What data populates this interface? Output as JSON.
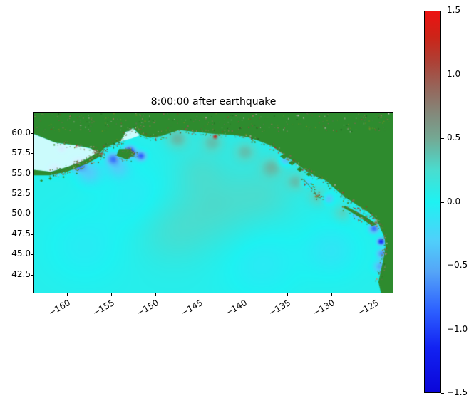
{
  "chart_data": {
    "type": "heatmap",
    "title": "8:00:00 after earthquake",
    "x_range": [
      -163.8,
      -123.0
    ],
    "y_range": [
      40.2,
      62.6
    ],
    "x_ticks": [
      -160,
      -155,
      -150,
      -145,
      -140,
      -135,
      -130,
      -125
    ],
    "x_tick_labels": [
      "−160",
      "−155",
      "−150",
      "−145",
      "−140",
      "−135",
      "−130",
      "−125"
    ],
    "y_ticks": [
      60.0,
      57.5,
      55.0,
      52.5,
      50.0,
      47.5,
      45.0,
      42.5
    ],
    "y_tick_labels": [
      "60.0",
      "57.5",
      "55.0",
      "52.5",
      "50.0",
      "47.5",
      "45.0",
      "42.5"
    ],
    "grid": false,
    "colorbar": {
      "vmin": -1.5,
      "vmax": 1.5,
      "position": "right",
      "ticks": [
        1.5,
        1.0,
        0.5,
        0.0,
        -0.5,
        -1.0,
        -1.5
      ],
      "tick_labels": [
        "1.5",
        "1.0",
        "0.5",
        "0.0",
        "−0.5",
        "−1.0",
        "−1.5"
      ],
      "colormap": [
        {
          "v": -1.5,
          "c": "#0b06d8"
        },
        {
          "v": -1.15,
          "c": "#1222f2"
        },
        {
          "v": -0.85,
          "c": "#2e62ff"
        },
        {
          "v": -0.55,
          "c": "#55a5f7"
        },
        {
          "v": -0.3,
          "c": "#4fd0fa"
        },
        {
          "v": 0.0,
          "c": "#1ef2f2"
        },
        {
          "v": 0.25,
          "c": "#49ddcf"
        },
        {
          "v": 0.5,
          "c": "#74a893"
        },
        {
          "v": 0.7,
          "c": "#84887a"
        },
        {
          "v": 0.9,
          "c": "#96655a"
        },
        {
          "v": 1.1,
          "c": "#ad4136"
        },
        {
          "v": 1.3,
          "c": "#cc2418"
        },
        {
          "v": 1.5,
          "c": "#ec1212"
        }
      ]
    },
    "sea_base": 0.05,
    "land_color": "#2e8b2e",
    "shallow_color": "#e9fdff",
    "land_texture_colors": [
      "#256d25",
      "#3c8a2c",
      "#6b8e23",
      "#7d6b4f",
      "#94785a",
      "#557a4a",
      "#9aa58c",
      "#7f5a3c",
      "#b22a1e",
      "#c8c8c8"
    ],
    "anomalies": [
      {
        "lon": -152.9,
        "lat": 57.7,
        "amp": -1.25,
        "sigma": 0.45
      },
      {
        "lon": -151.6,
        "lat": 57.15,
        "amp": -0.9,
        "sigma": 0.4
      },
      {
        "lon": -154.8,
        "lat": 56.8,
        "amp": -0.7,
        "sigma": 0.5
      },
      {
        "lon": -158.7,
        "lat": 56.1,
        "amp": -0.8,
        "sigma": 0.55
      },
      {
        "lon": -161.4,
        "lat": 55.5,
        "amp": -0.6,
        "sigma": 0.5
      },
      {
        "lon": -160.6,
        "lat": 58.1,
        "amp": -0.7,
        "sigma": 0.35
      },
      {
        "lon": -147.5,
        "lat": 59.3,
        "amp": 0.35,
        "sigma": 0.9
      },
      {
        "lon": -143.5,
        "lat": 58.9,
        "amp": 0.3,
        "sigma": 0.9
      },
      {
        "lon": -139.8,
        "lat": 57.7,
        "amp": 0.3,
        "sigma": 0.9
      },
      {
        "lon": -136.8,
        "lat": 55.8,
        "amp": 0.3,
        "sigma": 0.9
      },
      {
        "lon": -134.0,
        "lat": 54.0,
        "amp": 0.28,
        "sigma": 0.8
      },
      {
        "lon": -131.5,
        "lat": 52.1,
        "amp": 0.28,
        "sigma": 0.8
      },
      {
        "lon": -128.8,
        "lat": 50.1,
        "amp": 0.25,
        "sigma": 0.7
      },
      {
        "lon": -135.3,
        "lat": 56.6,
        "amp": -0.5,
        "sigma": 0.45
      },
      {
        "lon": -132.8,
        "lat": 53.9,
        "amp": -0.45,
        "sigma": 0.4
      },
      {
        "lon": -130.4,
        "lat": 51.9,
        "amp": -0.5,
        "sigma": 0.45
      },
      {
        "lon": -127.2,
        "lat": 49.9,
        "amp": -0.45,
        "sigma": 0.4
      },
      {
        "lon": -125.2,
        "lat": 48.2,
        "amp": -0.85,
        "sigma": 0.4
      },
      {
        "lon": -124.4,
        "lat": 46.6,
        "amp": -1.25,
        "sigma": 0.3
      },
      {
        "lon": -124.3,
        "lat": 45.1,
        "amp": -0.7,
        "sigma": 0.4
      },
      {
        "lon": -124.5,
        "lat": 43.5,
        "amp": -0.55,
        "sigma": 0.5
      },
      {
        "lon": -125.0,
        "lat": 48.9,
        "amp": 1.2,
        "sigma": 0.15
      },
      {
        "lon": -143.2,
        "lat": 59.55,
        "amp": 1.4,
        "sigma": 0.14
      },
      {
        "lon": -149.9,
        "lat": 59.6,
        "amp": 0.8,
        "sigma": 0.15
      },
      {
        "lon": -143.0,
        "lat": 51.0,
        "amp": 0.18,
        "sigma": 3.2
      },
      {
        "lon": -148.0,
        "lat": 48.0,
        "amp": 0.15,
        "sigma": 2.8
      },
      {
        "lon": -137.5,
        "lat": 52.5,
        "amp": 0.15,
        "sigma": 2.5
      },
      {
        "lon": -152.0,
        "lat": 52.0,
        "amp": -0.12,
        "sigma": 2.8
      },
      {
        "lon": -158.0,
        "lat": 46.0,
        "amp": -0.1,
        "sigma": 3.0
      },
      {
        "lon": -138.0,
        "lat": 44.0,
        "amp": -0.12,
        "sigma": 3.0
      },
      {
        "lon": -130.0,
        "lat": 45.5,
        "amp": -0.15,
        "sigma": 2.2
      },
      {
        "lon": -145.0,
        "lat": 55.5,
        "amp": 0.12,
        "sigma": 2.0
      },
      {
        "lon": -157.5,
        "lat": 55.1,
        "amp": -0.35,
        "sigma": 1.0
      },
      {
        "lon": -154.2,
        "lat": 55.7,
        "amp": -0.3,
        "sigma": 0.9
      }
    ],
    "land_polygons": {
      "mainland": [
        [
          -163.8,
          62.6
        ],
        [
          -163.8,
          59.9
        ],
        [
          -161.3,
          58.8
        ],
        [
          -159.0,
          58.5
        ],
        [
          -157.3,
          58.1
        ],
        [
          -156.3,
          57.5
        ],
        [
          -155.8,
          58.1
        ],
        [
          -154.6,
          58.7
        ],
        [
          -153.9,
          59.05
        ],
        [
          -153.35,
          60.15
        ],
        [
          -152.5,
          60.6
        ],
        [
          -151.7,
          59.75
        ],
        [
          -150.6,
          59.4
        ],
        [
          -149.2,
          59.65
        ],
        [
          -147.3,
          60.35
        ],
        [
          -145.6,
          60.15
        ],
        [
          -143.5,
          59.9
        ],
        [
          -141.2,
          59.75
        ],
        [
          -139.6,
          59.5
        ],
        [
          -138.2,
          59.0
        ],
        [
          -136.8,
          58.4
        ],
        [
          -136.0,
          57.8
        ],
        [
          -135.0,
          57.0
        ],
        [
          -134.0,
          56.2
        ],
        [
          -133.0,
          55.4
        ],
        [
          -131.9,
          54.7
        ],
        [
          -130.6,
          54.1
        ],
        [
          -129.6,
          53.1
        ],
        [
          -128.5,
          52.1
        ],
        [
          -127.0,
          51.0
        ],
        [
          -125.7,
          50.1
        ],
        [
          -124.9,
          49.3
        ],
        [
          -124.5,
          48.3
        ],
        [
          -124.0,
          47.1
        ],
        [
          -123.9,
          45.9
        ],
        [
          -124.1,
          44.6
        ],
        [
          -124.4,
          43.1
        ],
        [
          -124.7,
          41.6
        ],
        [
          -124.4,
          40.2
        ],
        [
          -123.0,
          40.2
        ],
        [
          -123.0,
          62.6
        ]
      ],
      "alaska_peninsula": [
        [
          -163.8,
          55.45
        ],
        [
          -161.8,
          55.2
        ],
        [
          -159.8,
          55.85
        ],
        [
          -157.9,
          56.7
        ],
        [
          -156.5,
          57.6
        ],
        [
          -155.95,
          57.3
        ],
        [
          -157.6,
          56.25
        ],
        [
          -159.9,
          55.25
        ],
        [
          -162.0,
          54.75
        ],
        [
          -163.8,
          54.75
        ]
      ],
      "kodiak_island": [
        [
          -154.1,
          58.0
        ],
        [
          -153.0,
          58.0
        ],
        [
          -152.3,
          57.4
        ],
        [
          -153.2,
          56.7
        ],
        [
          -154.4,
          57.2
        ]
      ],
      "haida_gwaii": [
        [
          -133.3,
          54.3
        ],
        [
          -132.5,
          53.4
        ],
        [
          -131.8,
          52.4
        ],
        [
          -131.2,
          51.9
        ],
        [
          -131.7,
          52.1
        ],
        [
          -132.3,
          53.2
        ],
        [
          -133.0,
          54.1
        ]
      ],
      "vancouver_island": [
        [
          -128.5,
          51.0
        ],
        [
          -127.2,
          50.3
        ],
        [
          -125.9,
          49.5
        ],
        [
          -124.9,
          48.7
        ],
        [
          -125.4,
          48.5
        ],
        [
          -126.6,
          49.4
        ],
        [
          -127.9,
          50.3
        ],
        [
          -128.7,
          50.8
        ]
      ]
    },
    "small_islands": [
      [
        -135.4,
        57.1,
        0.35
      ],
      [
        -134.5,
        56.3,
        0.3
      ],
      [
        -133.6,
        55.5,
        0.3
      ],
      [
        -132.6,
        54.9,
        0.25
      ],
      [
        -161.9,
        54.35,
        0.16
      ],
      [
        -160.4,
        54.55,
        0.12
      ],
      [
        -162.9,
        54.1,
        0.14
      ],
      [
        -158.9,
        55.0,
        0.1
      ]
    ],
    "shallow_polygons": {
      "bristol_bay": [
        [
          -163.8,
          59.85
        ],
        [
          -161.2,
          58.75
        ],
        [
          -159.0,
          58.45
        ],
        [
          -157.3,
          58.05
        ],
        [
          -156.35,
          57.5
        ],
        [
          -157.9,
          56.65
        ],
        [
          -159.9,
          55.8
        ],
        [
          -161.9,
          55.2
        ],
        [
          -163.8,
          55.45
        ]
      ],
      "cook_inlet": [
        [
          -153.9,
          59.0
        ],
        [
          -153.35,
          60.1
        ],
        [
          -152.55,
          60.55
        ],
        [
          -151.75,
          59.7
        ],
        [
          -152.7,
          59.3
        ]
      ]
    }
  }
}
